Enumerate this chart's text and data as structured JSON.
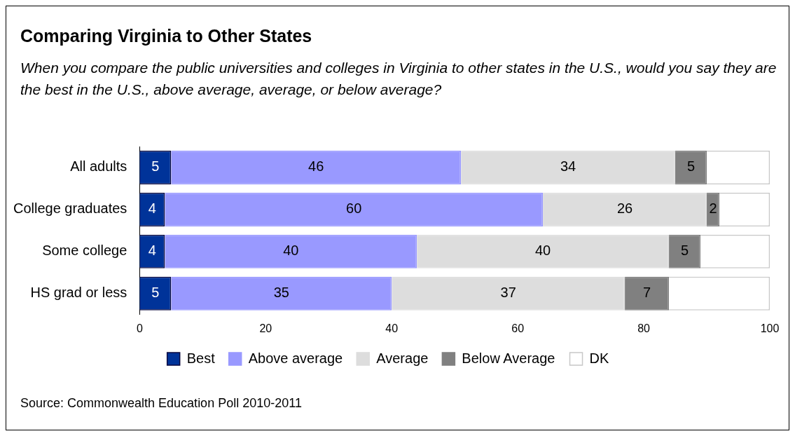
{
  "chart_data": {
    "type": "bar",
    "orientation": "horizontal",
    "stacked": true,
    "title": "Comparing Virginia to Other States",
    "subtitle": "When you compare the public universities and colleges in Virginia to other states in the U.S., would you say they are the best in the U.S., above average, average, or below average?",
    "categories": [
      "All adults",
      "College graduates",
      "Some college",
      "HS grad or less"
    ],
    "series": [
      {
        "name": "Best",
        "color": "#003399",
        "values": [
          5,
          4,
          4,
          5
        ],
        "value_labels": [
          "5",
          "4",
          "4",
          "5"
        ]
      },
      {
        "name": "Above average",
        "color": "#9999ff",
        "values": [
          46,
          60,
          40,
          35
        ],
        "value_labels": [
          "46",
          "60",
          "40",
          "35"
        ]
      },
      {
        "name": "Average",
        "color": "#dddddd",
        "values": [
          34,
          26,
          40,
          37
        ],
        "value_labels": [
          "34",
          "26",
          "40",
          "37"
        ]
      },
      {
        "name": "Below Average",
        "color": "#808080",
        "values": [
          5,
          2,
          5,
          7
        ],
        "value_labels": [
          "5",
          "2",
          "5",
          "7"
        ]
      },
      {
        "name": "DK",
        "color": "#ffffff",
        "values": [
          10,
          8,
          11,
          16
        ],
        "value_labels": [
          null,
          null,
          null,
          null
        ]
      }
    ],
    "xlim": [
      0,
      100
    ],
    "xticks": [
      0,
      20,
      40,
      60,
      80,
      100
    ],
    "legend": "bottom",
    "annotations": [
      "Source: Commonwealth Education Poll 2010-2011"
    ]
  }
}
